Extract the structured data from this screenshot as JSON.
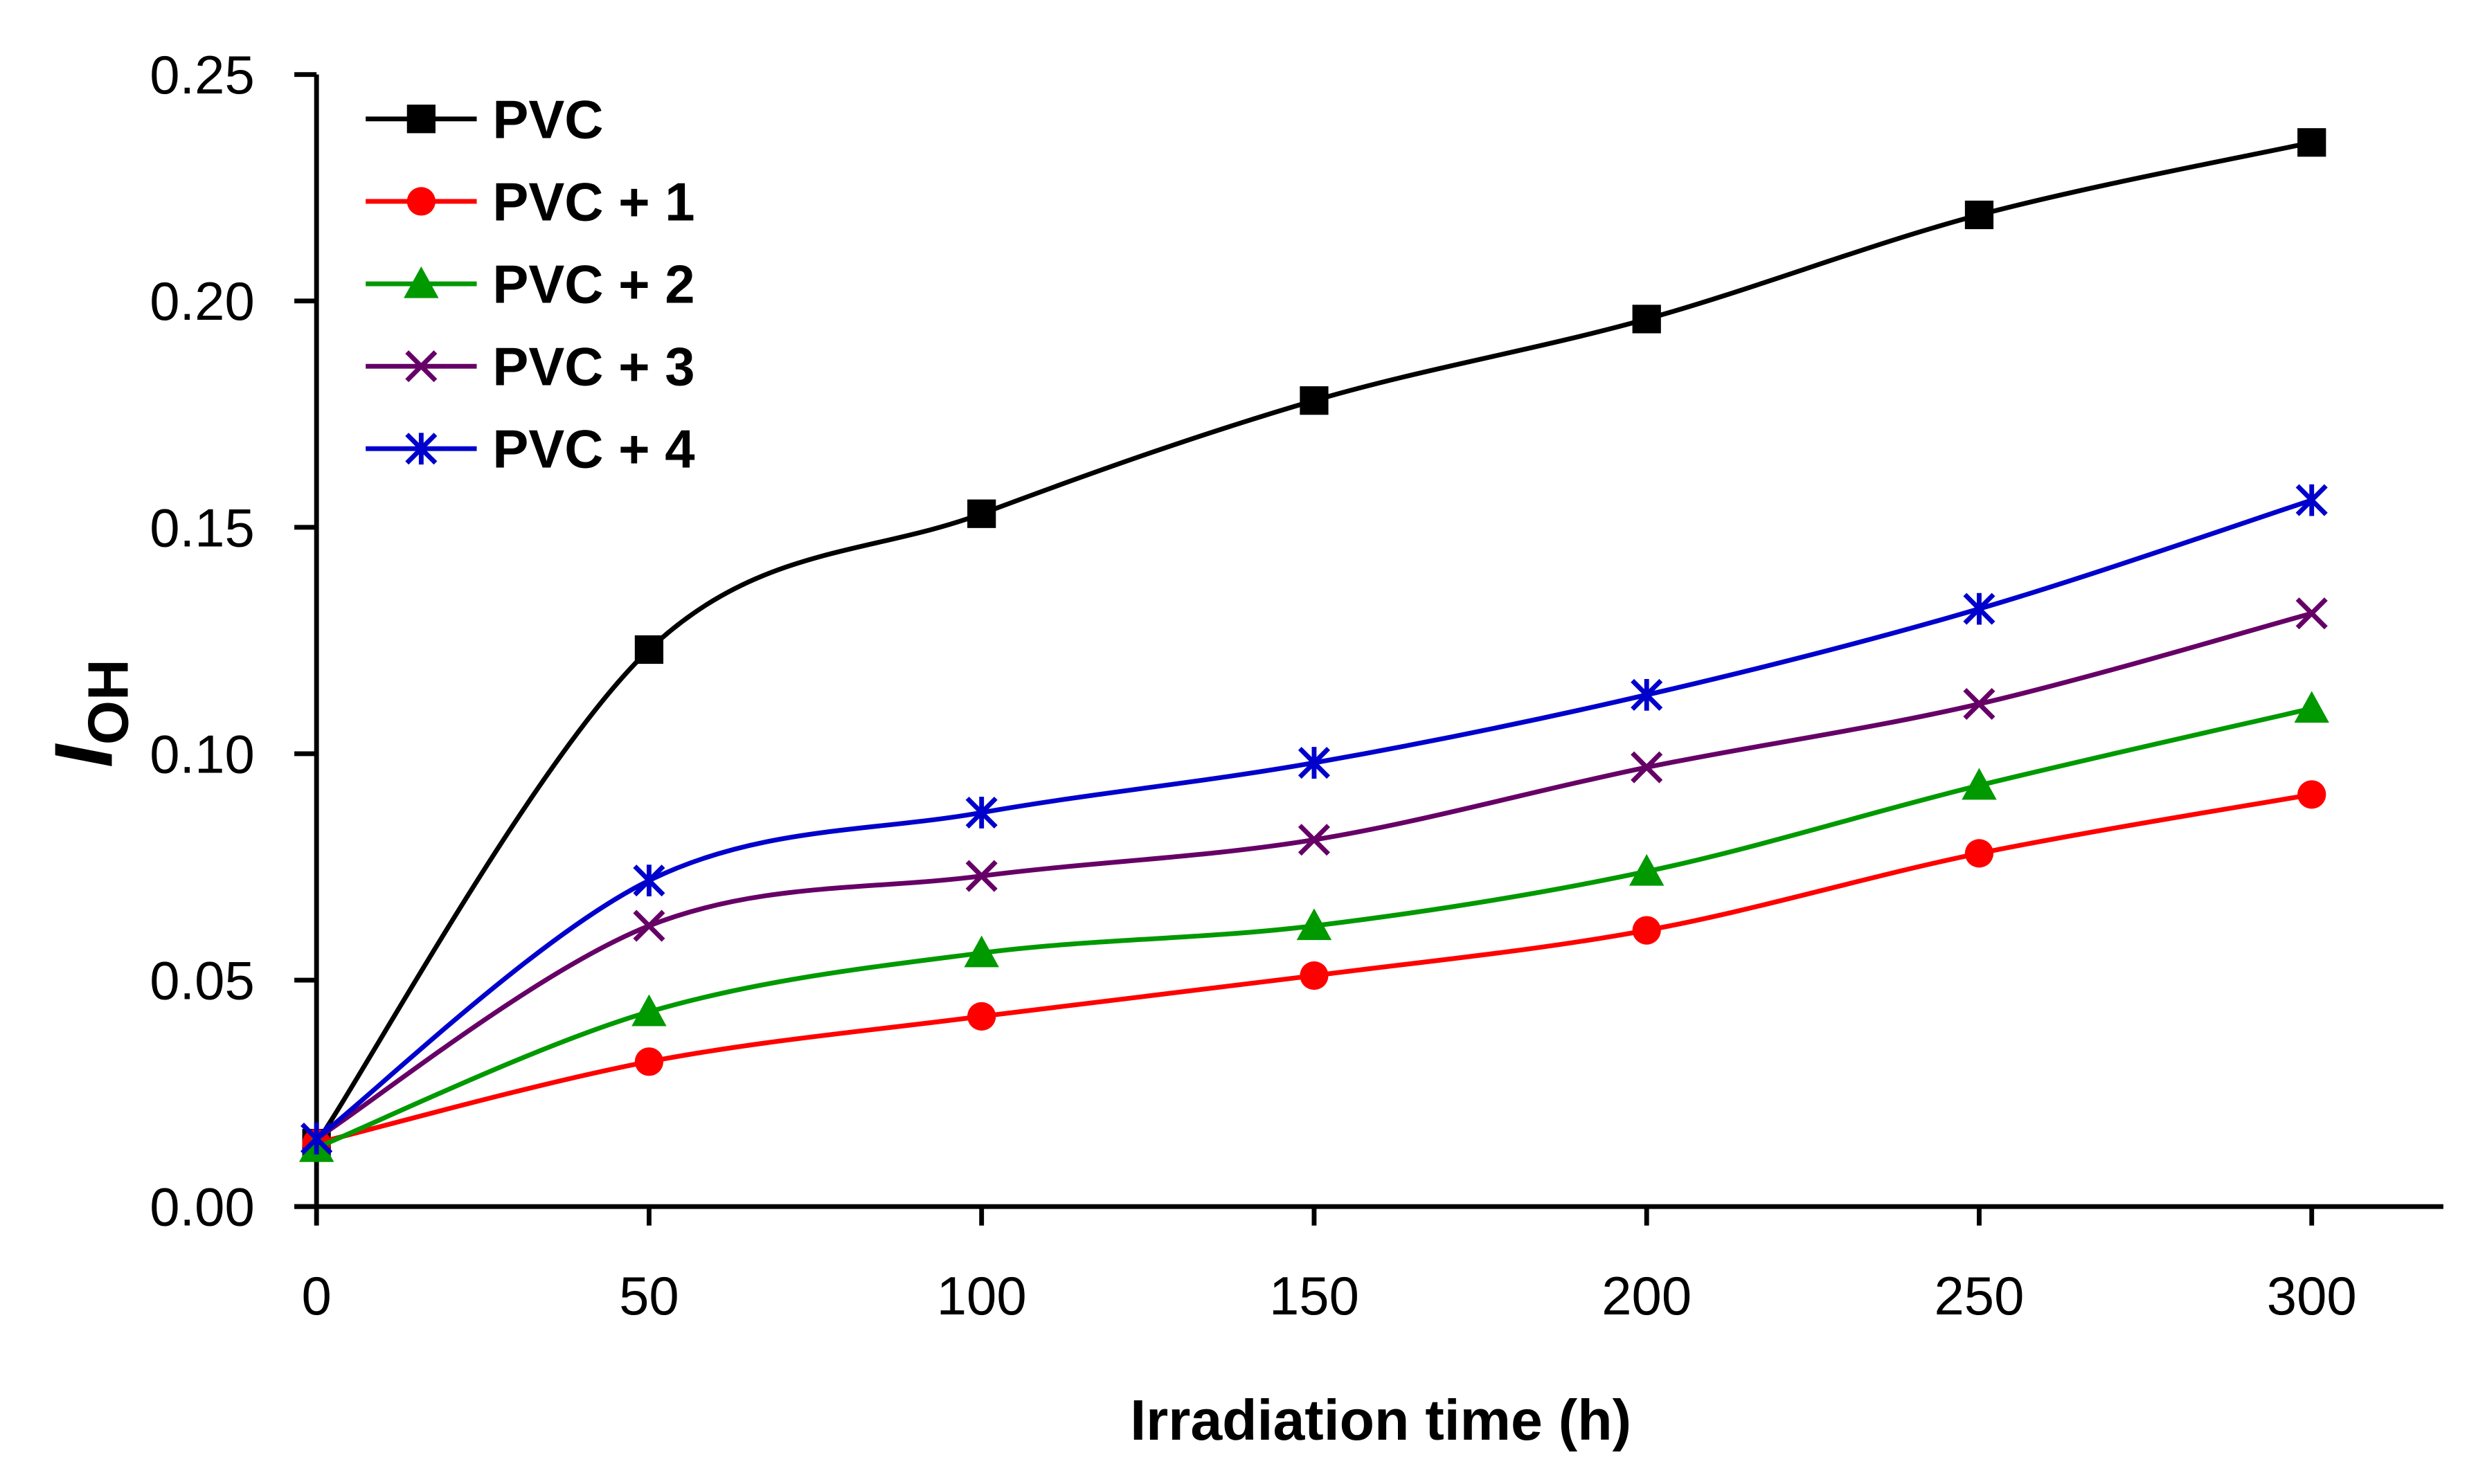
{
  "chart_data": {
    "type": "line",
    "title": "",
    "xlabel": "Irradiation time (h)",
    "ylabel": {
      "main": "I",
      "subscript": "OH"
    },
    "xlim": [
      0,
      320
    ],
    "ylim": [
      0,
      0.25
    ],
    "x": [
      0,
      50,
      100,
      150,
      200,
      250,
      300
    ],
    "xticks": [
      "0",
      "50",
      "100",
      "150",
      "200",
      "250",
      "300"
    ],
    "yticks": [
      "0.00",
      "0.05",
      "0.10",
      "0.15",
      "0.20",
      "0.25"
    ],
    "ytick_values": [
      0,
      0.05,
      0.1,
      0.15,
      0.2,
      0.25
    ],
    "grid": false,
    "legend_position": "top-left",
    "series": [
      {
        "name": "PVC",
        "color": "#000000",
        "marker": "square",
        "values": [
          0.014,
          0.123,
          0.153,
          0.178,
          0.196,
          0.219,
          0.235
        ]
      },
      {
        "name": "PVC + 1",
        "color": "#ff0000",
        "marker": "circle",
        "values": [
          0.014,
          0.032,
          0.042,
          0.051,
          0.061,
          0.078,
          0.091
        ]
      },
      {
        "name": "PVC + 2",
        "color": "#009900",
        "marker": "triangle",
        "values": [
          0.013,
          0.043,
          0.056,
          0.062,
          0.074,
          0.093,
          0.11
        ]
      },
      {
        "name": "PVC + 3",
        "color": "#660066",
        "marker": "x",
        "values": [
          0.015,
          0.062,
          0.073,
          0.081,
          0.097,
          0.111,
          0.131
        ]
      },
      {
        "name": "PVC + 4",
        "color": "#0000cc",
        "marker": "asterisk",
        "values": [
          0.015,
          0.072,
          0.087,
          0.098,
          0.113,
          0.132,
          0.156
        ]
      }
    ]
  }
}
